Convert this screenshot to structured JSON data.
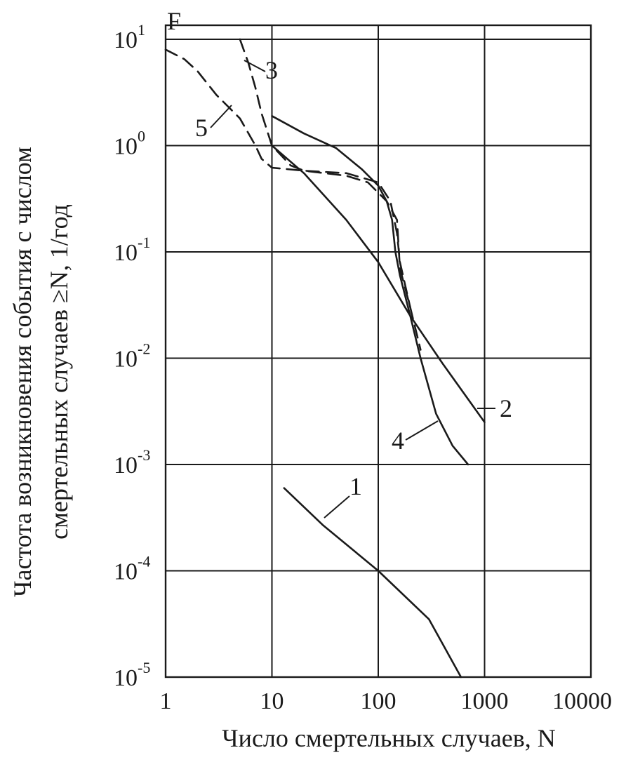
{
  "chart_data": {
    "type": "line",
    "title": "",
    "xlabel": "Число смертельных случаев, N",
    "ylabel_lines": [
      "Частота возникновения события с числом",
      "смертельных случаев ≥N, 1/год"
    ],
    "y_axis_marker": "F",
    "xscale": "log",
    "yscale": "log",
    "xlim": [
      1,
      10000
    ],
    "ylim": [
      1e-05,
      10
    ],
    "grid": true,
    "legend": "none",
    "x_ticks": [
      {
        "value": 1,
        "label": "1"
      },
      {
        "value": 10,
        "label": "10"
      },
      {
        "value": 100,
        "label": "100"
      },
      {
        "value": 1000,
        "label": "1000"
      },
      {
        "value": 10000,
        "label": "10000"
      }
    ],
    "y_ticks": [
      {
        "value": 10,
        "base": "10",
        "exp": "1"
      },
      {
        "value": 1,
        "base": "10",
        "exp": "0"
      },
      {
        "value": 0.1,
        "base": "10",
        "exp": "-1"
      },
      {
        "value": 0.01,
        "base": "10",
        "exp": "-2"
      },
      {
        "value": 0.001,
        "base": "10",
        "exp": "-3"
      },
      {
        "value": 0.0001,
        "base": "10",
        "exp": "-4"
      },
      {
        "value": 1e-05,
        "base": "10",
        "exp": "-5"
      }
    ],
    "series": [
      {
        "label": "1",
        "style": "solid",
        "points": [
          [
            13,
            0.0006
          ],
          [
            30,
            0.00027
          ],
          [
            100,
            0.0001
          ],
          [
            300,
            3.5e-05
          ],
          [
            600,
            1e-05
          ]
        ]
      },
      {
        "label": "2",
        "style": "solid",
        "points": [
          [
            10,
            1.0
          ],
          [
            20,
            0.55
          ],
          [
            50,
            0.2
          ],
          [
            100,
            0.08
          ],
          [
            200,
            0.025
          ],
          [
            400,
            0.009
          ],
          [
            1000,
            0.0025
          ]
        ]
      },
      {
        "label": "3",
        "style": "dashed",
        "points": [
          [
            5,
            10.0
          ],
          [
            6,
            6.0
          ],
          [
            7,
            3.5
          ],
          [
            8,
            2.0
          ],
          [
            10,
            1.0
          ],
          [
            15,
            0.65
          ],
          [
            20,
            0.58
          ],
          [
            50,
            0.52
          ],
          [
            80,
            0.45
          ],
          [
            120,
            0.3
          ],
          [
            150,
            0.2
          ],
          [
            160,
            0.07
          ],
          [
            200,
            0.03
          ],
          [
            250,
            0.012
          ]
        ]
      },
      {
        "label": "4",
        "style": "solid",
        "points": [
          [
            10,
            1.9
          ],
          [
            20,
            1.3
          ],
          [
            40,
            0.95
          ],
          [
            70,
            0.6
          ],
          [
            100,
            0.42
          ],
          [
            120,
            0.3
          ],
          [
            135,
            0.2
          ],
          [
            145,
            0.1
          ],
          [
            160,
            0.06
          ],
          [
            200,
            0.025
          ],
          [
            250,
            0.01
          ],
          [
            350,
            0.003
          ],
          [
            500,
            0.0015
          ],
          [
            700,
            0.001
          ]
        ]
      },
      {
        "label": "5",
        "style": "dashed",
        "points": [
          [
            1,
            8.0
          ],
          [
            1.5,
            6.5
          ],
          [
            2,
            5.0
          ],
          [
            3,
            3.0
          ],
          [
            5,
            1.8
          ],
          [
            7,
            1.0
          ],
          [
            8,
            0.75
          ],
          [
            10,
            0.62
          ],
          [
            20,
            0.58
          ],
          [
            50,
            0.55
          ],
          [
            100,
            0.45
          ],
          [
            130,
            0.3
          ],
          [
            150,
            0.15
          ],
          [
            160,
            0.08
          ],
          [
            200,
            0.03
          ]
        ]
      }
    ]
  }
}
